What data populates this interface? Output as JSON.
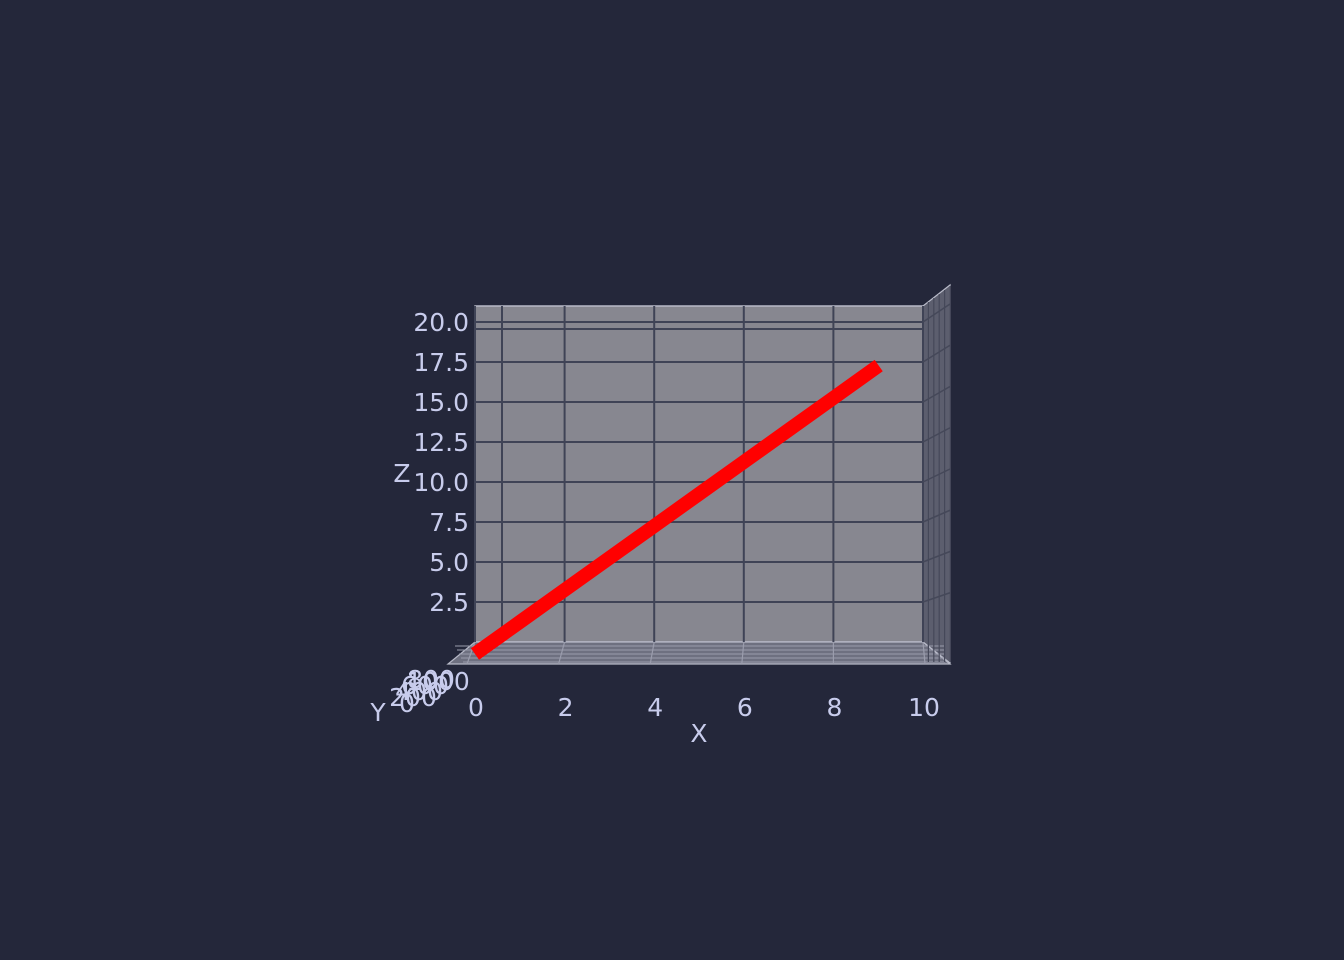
{
  "chart_data": {
    "type": "line",
    "title": "",
    "xlabel": "X",
    "ylabel": "Y",
    "zlabel": "Z",
    "xlim": [
      0,
      10
    ],
    "zlim": [
      0,
      21
    ],
    "x_ticks": [
      "0",
      "2",
      "4",
      "6",
      "8",
      "10"
    ],
    "y_ticks": [
      "0",
      "200",
      "400",
      "600",
      "800",
      "1000"
    ],
    "z_ticks": [
      "2.5",
      "5.0",
      "7.5",
      "10.0",
      "12.5",
      "15.0",
      "17.5",
      "20.0"
    ],
    "grid": true,
    "series": [
      {
        "x": [
          0,
          1,
          2,
          3,
          4,
          5,
          6,
          7,
          8,
          9
        ],
        "y": [
          0,
          1,
          4,
          9,
          16,
          25,
          36,
          49,
          64,
          81
        ],
        "z": [
          0,
          2,
          4,
          6,
          8,
          10,
          12,
          14,
          16,
          18
        ],
        "color": "#ff0000"
      }
    ]
  },
  "colors": {
    "background": "#24273a",
    "pane": "#878790",
    "grid": "#3f4356",
    "text": "#c8ccec",
    "line": "#ff0000"
  }
}
